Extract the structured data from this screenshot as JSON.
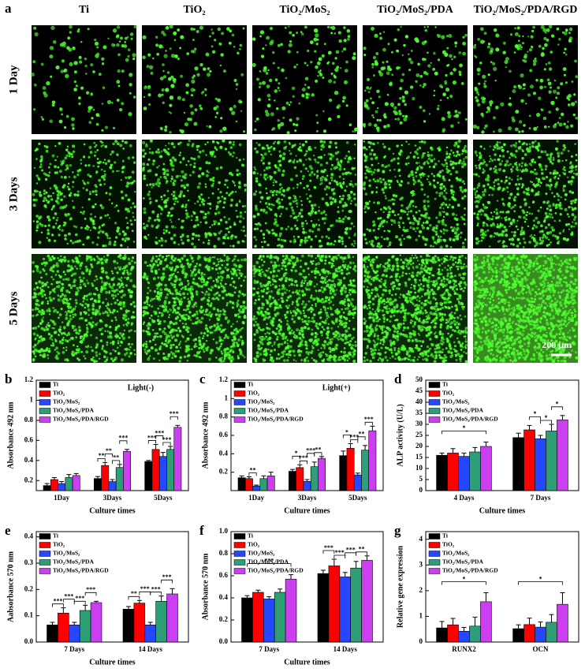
{
  "micrographs": {
    "panel": "a",
    "columns": [
      "Ti",
      "TiO₂",
      "TiO₂/MoS₂",
      "TiO₂/MoS₂/PDA",
      "TiO₂/MoS₂/PDA/RGD"
    ],
    "rows": [
      "1 Day",
      "3 Days",
      "5 Days"
    ],
    "scale_bar": "200 μm"
  },
  "chart_data": [
    {
      "type": "bar",
      "panel": "b",
      "annotation": "Light(-)",
      "ylabel": "Absorbance 492 nm",
      "xlabel": "Culture times",
      "categories": [
        "1Day",
        "3Days",
        "5Days"
      ],
      "ylim": [
        0.1,
        1.2
      ],
      "yticks": [
        0.2,
        0.4,
        0.6,
        0.8,
        1.0,
        1.2
      ],
      "series": [
        {
          "name": "Ti",
          "color": "#000000",
          "values": [
            0.15,
            0.22,
            0.39
          ],
          "errors": [
            0.02,
            0.02,
            0.01
          ]
        },
        {
          "name": "TiO₂",
          "color": "#ff0000",
          "values": [
            0.21,
            0.35,
            0.51
          ],
          "errors": [
            0.02,
            0.03,
            0.05
          ]
        },
        {
          "name": "TiO₂/MoS₂",
          "color": "#2447ff",
          "values": [
            0.17,
            0.19,
            0.44
          ],
          "errors": [
            0.02,
            0.02,
            0.04
          ]
        },
        {
          "name": "TiO₂/MoS₂/PDA",
          "color": "#2e9e76",
          "values": [
            0.23,
            0.33,
            0.51
          ],
          "errors": [
            0.03,
            0.03,
            0.03
          ]
        },
        {
          "name": "TiO₂/MoS₂/PDA/RGD",
          "color": "#cc3ff0",
          "values": [
            0.25,
            0.49,
            0.73
          ],
          "errors": [
            0.02,
            0.02,
            0.02
          ]
        }
      ],
      "significance": [
        {
          "label": "**",
          "category": 1,
          "pair": [
            0,
            1
          ]
        },
        {
          "label": "**",
          "category": 1,
          "pair": [
            1,
            2
          ]
        },
        {
          "label": "**",
          "category": 1,
          "pair": [
            2,
            3
          ]
        },
        {
          "label": "***",
          "category": 1,
          "pair": [
            3,
            4
          ]
        },
        {
          "label": "***",
          "category": 2,
          "pair": [
            0,
            1
          ]
        },
        {
          "label": "***",
          "category": 2,
          "pair": [
            1,
            2
          ]
        },
        {
          "label": "***",
          "category": 2,
          "pair": [
            2,
            3
          ]
        },
        {
          "label": "***",
          "category": 2,
          "pair": [
            3,
            4
          ]
        }
      ]
    },
    {
      "type": "bar",
      "panel": "c",
      "annotation": "Light(+)",
      "ylabel": "Absorbance 492 nm",
      "xlabel": "Culture times",
      "categories": [
        "1Day",
        "3Days",
        "5Days"
      ],
      "ylim": [
        0,
        1.2
      ],
      "yticks": [
        0.2,
        0.4,
        0.6,
        0.8,
        1.0,
        1.2
      ],
      "series": [
        {
          "name": "Ti",
          "color": "#000000",
          "values": [
            0.14,
            0.21,
            0.38
          ],
          "errors": [
            0.02,
            0.02,
            0.05
          ]
        },
        {
          "name": "TiO₂",
          "color": "#ff0000",
          "values": [
            0.13,
            0.25,
            0.46
          ],
          "errors": [
            0.02,
            0.03,
            0.05
          ]
        },
        {
          "name": "TiO₂/MoS₂",
          "color": "#2447ff",
          "values": [
            0.05,
            0.1,
            0.17
          ],
          "errors": [
            0.01,
            0.02,
            0.02
          ]
        },
        {
          "name": "TiO₂/MoS₂/PDA",
          "color": "#2e9e76",
          "values": [
            0.13,
            0.26,
            0.44
          ],
          "errors": [
            0.03,
            0.05,
            0.05
          ]
        },
        {
          "name": "TiO₂/MoS₂/PDA/RGD",
          "color": "#cc3ff0",
          "values": [
            0.16,
            0.35,
            0.65
          ],
          "errors": [
            0.04,
            0.02,
            0.05
          ]
        }
      ],
      "significance": [
        {
          "label": "**",
          "category": 0,
          "pair": [
            1,
            2
          ]
        },
        {
          "label": "*",
          "category": 1,
          "pair": [
            0,
            1
          ]
        },
        {
          "label": "***",
          "category": 1,
          "pair": [
            1,
            2
          ]
        },
        {
          "label": "***",
          "category": 1,
          "pair": [
            2,
            3
          ]
        },
        {
          "label": "**",
          "category": 1,
          "pair": [
            3,
            4
          ]
        },
        {
          "label": "*",
          "category": 2,
          "pair": [
            0,
            1
          ]
        },
        {
          "label": "***",
          "category": 2,
          "pair": [
            1,
            2
          ]
        },
        {
          "label": "**",
          "category": 2,
          "pair": [
            2,
            3
          ]
        },
        {
          "label": "***",
          "category": 2,
          "pair": [
            3,
            4
          ]
        }
      ]
    },
    {
      "type": "bar",
      "panel": "d",
      "ylabel": "ALP activity (U/L)",
      "xlabel": "Culture times",
      "categories": [
        "4 Days",
        "7 Days"
      ],
      "ylim": [
        0,
        50
      ],
      "yticks": [
        0,
        5,
        10,
        15,
        20,
        25,
        30,
        35,
        40,
        45,
        50
      ],
      "series": [
        {
          "name": "Ti",
          "color": "#000000",
          "values": [
            16,
            24
          ],
          "errors": [
            1,
            2
          ]
        },
        {
          "name": "TiO₂",
          "color": "#ff0000",
          "values": [
            17,
            27.5
          ],
          "errors": [
            2,
            2
          ]
        },
        {
          "name": "TiO₂/MoS₂",
          "color": "#2447ff",
          "values": [
            15.5,
            23.5
          ],
          "errors": [
            1.5,
            1.5
          ]
        },
        {
          "name": "TiO₂/MoS₂/PDA",
          "color": "#2e9e76",
          "values": [
            17.5,
            27
          ],
          "errors": [
            2,
            3
          ]
        },
        {
          "name": "TiO₂/MoS₂/PDA/RGD",
          "color": "#cc3ff0",
          "values": [
            20,
            32
          ],
          "errors": [
            2,
            2
          ]
        }
      ],
      "significance": [
        {
          "label": "*",
          "category": 0,
          "pair": [
            0,
            4
          ]
        },
        {
          "label": "*",
          "category": 1,
          "pair": [
            1,
            2
          ]
        },
        {
          "label": "*",
          "category": 1,
          "pair": [
            2,
            3
          ]
        },
        {
          "label": "*",
          "category": 1,
          "pair": [
            3,
            4
          ]
        }
      ]
    },
    {
      "type": "bar",
      "panel": "e",
      "ylabel": "Aabsorbance 570 nm",
      "xlabel": "Culture times",
      "categories": [
        "7 Days",
        "14 Days"
      ],
      "ylim": [
        0,
        0.42
      ],
      "yticks": [
        {
          "value": 0,
          "label": "0.0"
        },
        0.1,
        0.2,
        0.3,
        0.4
      ],
      "series": [
        {
          "name": "Ti",
          "color": "#000000",
          "values": [
            0.065,
            0.125
          ],
          "errors": [
            0.01,
            0.01
          ]
        },
        {
          "name": "TiO₂",
          "color": "#ff0000",
          "values": [
            0.11,
            0.148
          ],
          "errors": [
            0.02,
            0.01
          ]
        },
        {
          "name": "TiO₂/MoS₂",
          "color": "#2447ff",
          "values": [
            0.065,
            0.065
          ],
          "errors": [
            0.01,
            0.01
          ]
        },
        {
          "name": "TiO₂/MoS₂/PDA",
          "color": "#2e9e76",
          "values": [
            0.12,
            0.155
          ],
          "errors": [
            0.02,
            0.02
          ]
        },
        {
          "name": "TiO₂/MoS₂/PDA/RGD",
          "color": "#cc3ff0",
          "values": [
            0.15,
            0.183
          ],
          "errors": [
            0.005,
            0.02
          ]
        }
      ],
      "significance": [
        {
          "label": "***",
          "category": 0,
          "pair": [
            0,
            1
          ]
        },
        {
          "label": "***",
          "category": 0,
          "pair": [
            1,
            2
          ]
        },
        {
          "label": "***",
          "category": 0,
          "pair": [
            2,
            3
          ]
        },
        {
          "label": "***",
          "category": 0,
          "pair": [
            3,
            4
          ]
        },
        {
          "label": "**",
          "category": 1,
          "pair": [
            0,
            1
          ]
        },
        {
          "label": "***",
          "category": 1,
          "pair": [
            1,
            2
          ]
        },
        {
          "label": "***",
          "category": 1,
          "pair": [
            2,
            3
          ]
        },
        {
          "label": "***",
          "category": 1,
          "pair": [
            3,
            4
          ]
        }
      ]
    },
    {
      "type": "bar",
      "panel": "f",
      "ylabel": "Absorbance 570 nm",
      "xlabel": "Culture times",
      "categories": [
        "7 Days",
        "14 Days"
      ],
      "ylim": [
        0,
        1.0
      ],
      "yticks": [
        {
          "value": 0,
          "label": "0.0"
        },
        0.2,
        0.4,
        0.6,
        0.8,
        {
          "value": 1,
          "label": "1.0"
        }
      ],
      "series": [
        {
          "name": "Ti",
          "color": "#000000",
          "values": [
            0.4,
            0.62
          ],
          "errors": [
            0.02,
            0.03
          ]
        },
        {
          "name": "TiO₂",
          "color": "#ff0000",
          "values": [
            0.45,
            0.69
          ],
          "errors": [
            0.02,
            0.06
          ]
        },
        {
          "name": "TiO₂/MoS₂",
          "color": "#2447ff",
          "values": [
            0.39,
            0.59
          ],
          "errors": [
            0.02,
            0.04
          ]
        },
        {
          "name": "TiO₂/MoS₂/PDA",
          "color": "#2e9e76",
          "values": [
            0.45,
            0.67
          ],
          "errors": [
            0.03,
            0.06
          ]
        },
        {
          "name": "TiO₂/MoS₂/PDA/RGD",
          "color": "#cc3ff0",
          "values": [
            0.57,
            0.74
          ],
          "errors": [
            0.04,
            0.04
          ]
        }
      ],
      "significance": [
        {
          "label": "***",
          "category": 0,
          "pair": [
            0,
            4
          ]
        },
        {
          "label": "***",
          "category": 1,
          "pair": [
            0,
            1
          ]
        },
        {
          "label": "***",
          "category": 1,
          "pair": [
            1,
            2
          ]
        },
        {
          "label": "***",
          "category": 1,
          "pair": [
            2,
            3
          ]
        },
        {
          "label": "**",
          "category": 1,
          "pair": [
            3,
            4
          ]
        }
      ]
    },
    {
      "type": "bar",
      "panel": "g",
      "ylabel": "Relative gene expression",
      "categories": [
        "RUNX2",
        "OCN"
      ],
      "ylim": [
        0,
        4.3
      ],
      "yticks": [
        0,
        1,
        2,
        3,
        4
      ],
      "series": [
        {
          "name": "Ti",
          "color": "#000000",
          "values": [
            0.55,
            0.52
          ],
          "errors": [
            0.25,
            0.15
          ]
        },
        {
          "name": "TiO₂",
          "color": "#ff0000",
          "values": [
            0.67,
            0.68
          ],
          "errors": [
            0.25,
            0.25
          ]
        },
        {
          "name": "TiO₂/MoS₂",
          "color": "#2447ff",
          "values": [
            0.42,
            0.58
          ],
          "errors": [
            0.15,
            0.2
          ]
        },
        {
          "name": "TiO₂/MoS₂/PDA",
          "color": "#2e9e76",
          "values": [
            0.62,
            0.77
          ],
          "errors": [
            0.35,
            0.3
          ]
        },
        {
          "name": "TiO₂/MoS₂/PDA/RGD",
          "color": "#cc3ff0",
          "values": [
            1.57,
            1.47
          ],
          "errors": [
            0.35,
            0.45
          ]
        }
      ],
      "significance": [
        {
          "label": "*",
          "category": 0,
          "pair": [
            0,
            4
          ]
        },
        {
          "label": "*",
          "category": 1,
          "pair": [
            0,
            4
          ]
        }
      ]
    }
  ]
}
